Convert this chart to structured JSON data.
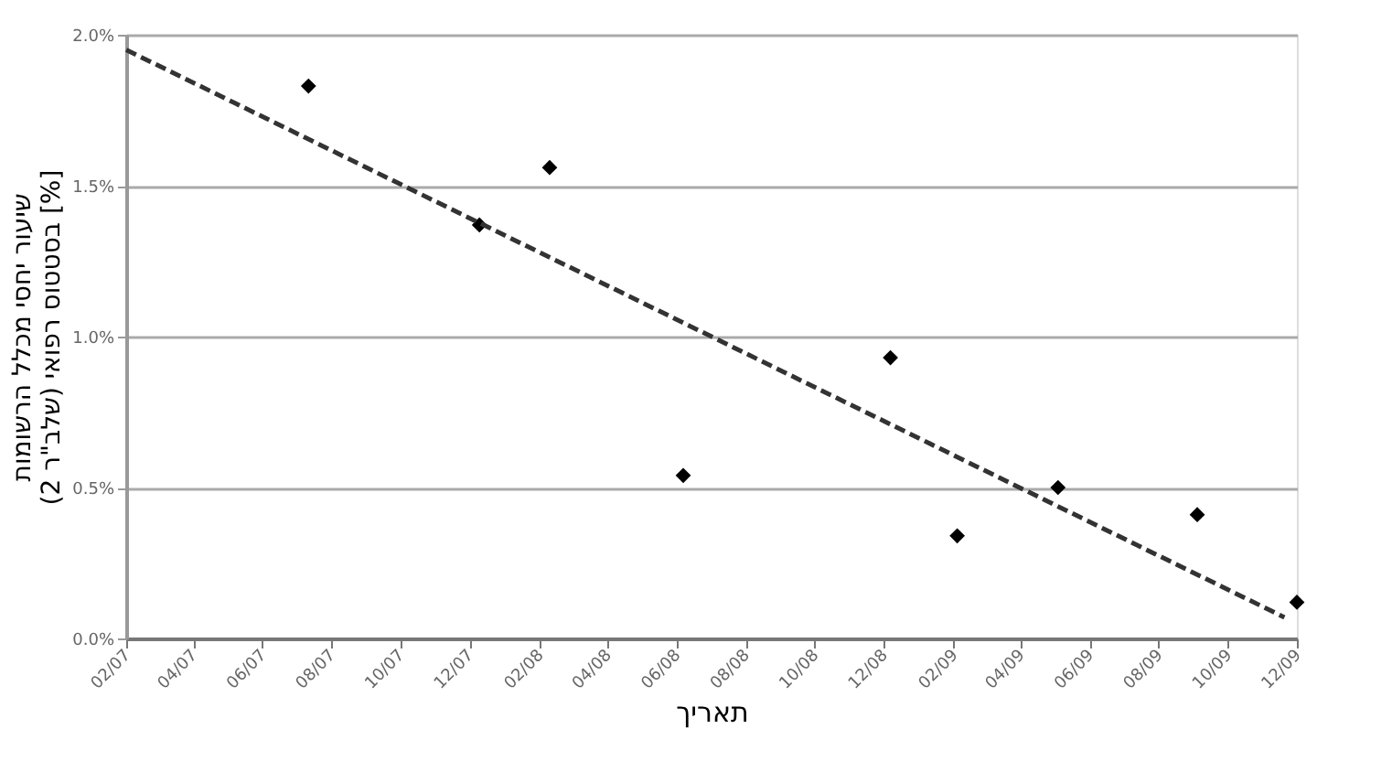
{
  "chart_data": {
    "type": "scatter",
    "xlabel": "תאריך",
    "ylabel": "שיעור יחסי מכלל הרשומות\nבסטטוס רפואי (שלב\"ר 2) [%]",
    "xlim": [
      "2007-02-01",
      "2009-12-01"
    ],
    "xticks": [
      {
        "value": "2007-02-01",
        "label": "02/07"
      },
      {
        "value": "2007-04-01",
        "label": "04/07"
      },
      {
        "value": "2007-06-01",
        "label": "06/07"
      },
      {
        "value": "2007-08-01",
        "label": "08/07"
      },
      {
        "value": "2007-10-01",
        "label": "10/07"
      },
      {
        "value": "2007-12-01",
        "label": "12/07"
      },
      {
        "value": "2008-02-01",
        "label": "02/08"
      },
      {
        "value": "2008-04-01",
        "label": "04/08"
      },
      {
        "value": "2008-06-01",
        "label": "06/08"
      },
      {
        "value": "2008-08-01",
        "label": "08/08"
      },
      {
        "value": "2008-10-01",
        "label": "10/08"
      },
      {
        "value": "2008-12-01",
        "label": "12/08"
      },
      {
        "value": "2009-02-01",
        "label": "02/09"
      },
      {
        "value": "2009-04-01",
        "label": "04/09"
      },
      {
        "value": "2009-06-01",
        "label": "06/09"
      },
      {
        "value": "2009-08-01",
        "label": "08/09"
      },
      {
        "value": "2009-10-01",
        "label": "10/09"
      },
      {
        "value": "2009-12-01",
        "label": "12/09"
      }
    ],
    "ylim": [
      0,
      2
    ],
    "yticks": [
      {
        "value": 0,
        "label": "0.0%"
      },
      {
        "value": 0.5,
        "label": "0.5%"
      },
      {
        "value": 1,
        "label": "1.0%"
      },
      {
        "value": 1.5,
        "label": "1.5%"
      },
      {
        "value": 2,
        "label": "2.0%"
      }
    ],
    "grid": "y",
    "marker": "diamond",
    "series": [
      {
        "type": "scatter",
        "color": "#000000",
        "marker": "diamond",
        "x": [
          "2007-07-12",
          "2007-12-10",
          "2008-02-10",
          "2008-06-07",
          "2008-12-07",
          "2009-02-04",
          "2009-05-04",
          "2009-09-04",
          "2009-12-01"
        ],
        "values": [
          1.83,
          1.37,
          1.56,
          0.54,
          0.93,
          0.34,
          0.5,
          0.41,
          0.12
        ]
      },
      {
        "type": "line",
        "color": "#333333",
        "line_style": "dashed",
        "marker": "none",
        "x": [
          "2007-02-01",
          "2009-11-20"
        ],
        "values": [
          1.95,
          0.07
        ]
      }
    ]
  }
}
